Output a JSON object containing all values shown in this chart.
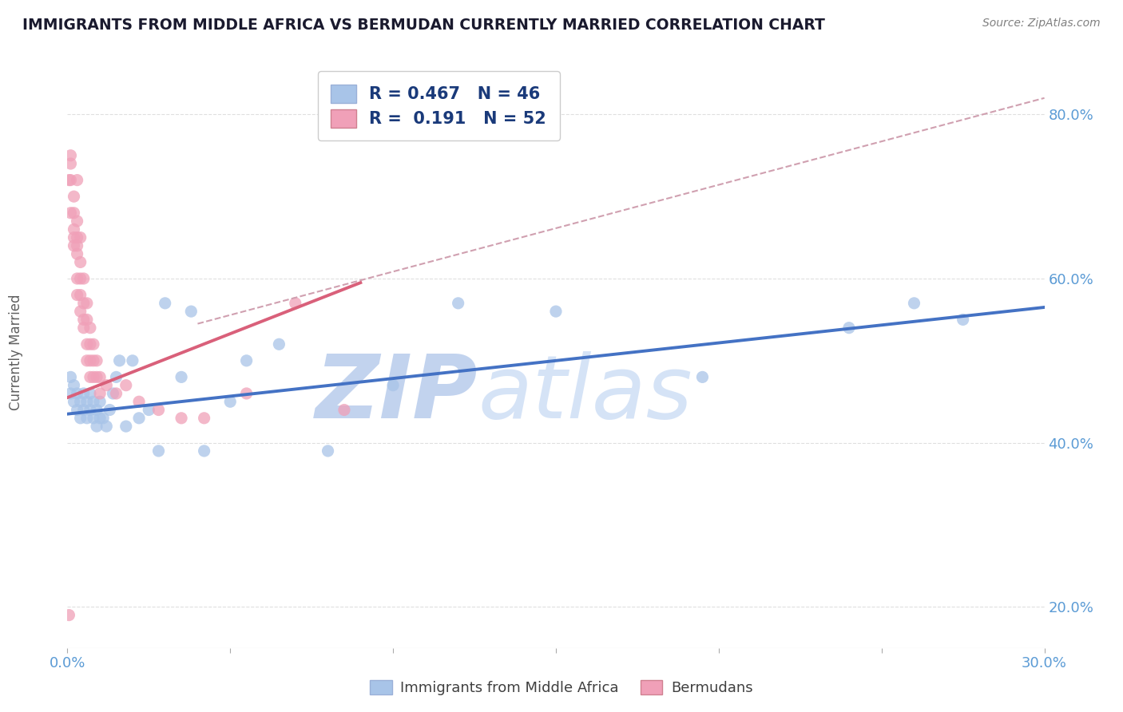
{
  "title": "IMMIGRANTS FROM MIDDLE AFRICA VS BERMUDAN CURRENTLY MARRIED CORRELATION CHART",
  "source_text": "Source: ZipAtlas.com",
  "ylabel": "Currently Married",
  "xlim": [
    0.0,
    0.3
  ],
  "ylim": [
    0.15,
    0.87
  ],
  "xticks": [
    0.0,
    0.05,
    0.1,
    0.15,
    0.2,
    0.25,
    0.3
  ],
  "xticklabels": [
    "0.0%",
    "",
    "",
    "",
    "",
    "",
    "30.0%"
  ],
  "yticks": [
    0.2,
    0.4,
    0.6,
    0.8
  ],
  "yticklabels": [
    "20.0%",
    "40.0%",
    "60.0%",
    "80.0%"
  ],
  "legend_r1": "R = 0.467",
  "legend_n1": "N = 46",
  "legend_r2": "R =  0.191",
  "legend_n2": "N = 52",
  "blue_color": "#a8c4e8",
  "pink_color": "#f0a0b8",
  "blue_line_color": "#4472c4",
  "pink_line_color": "#d9607a",
  "dashed_line_color": "#d0a0b0",
  "watermark": "ZIPatlas",
  "watermark_blue": "#c8d8f0",
  "blue_scatter_x": [
    0.001,
    0.001,
    0.002,
    0.002,
    0.003,
    0.003,
    0.004,
    0.004,
    0.005,
    0.005,
    0.006,
    0.006,
    0.007,
    0.007,
    0.008,
    0.008,
    0.009,
    0.009,
    0.01,
    0.01,
    0.011,
    0.012,
    0.013,
    0.014,
    0.015,
    0.016,
    0.018,
    0.02,
    0.022,
    0.025,
    0.028,
    0.03,
    0.035,
    0.038,
    0.042,
    0.05,
    0.055,
    0.065,
    0.08,
    0.1,
    0.12,
    0.15,
    0.195,
    0.24,
    0.26,
    0.275
  ],
  "blue_scatter_y": [
    0.46,
    0.48,
    0.45,
    0.47,
    0.44,
    0.46,
    0.43,
    0.45,
    0.44,
    0.46,
    0.43,
    0.45,
    0.44,
    0.46,
    0.43,
    0.45,
    0.42,
    0.44,
    0.43,
    0.45,
    0.43,
    0.42,
    0.44,
    0.46,
    0.48,
    0.5,
    0.42,
    0.5,
    0.43,
    0.44,
    0.39,
    0.57,
    0.48,
    0.56,
    0.39,
    0.45,
    0.5,
    0.52,
    0.39,
    0.47,
    0.57,
    0.56,
    0.48,
    0.54,
    0.57,
    0.55
  ],
  "pink_scatter_x": [
    0.0005,
    0.001,
    0.001,
    0.001,
    0.001,
    0.002,
    0.002,
    0.002,
    0.002,
    0.002,
    0.003,
    0.003,
    0.003,
    0.003,
    0.003,
    0.003,
    0.003,
    0.004,
    0.004,
    0.004,
    0.004,
    0.004,
    0.005,
    0.005,
    0.005,
    0.005,
    0.006,
    0.006,
    0.006,
    0.006,
    0.007,
    0.007,
    0.007,
    0.007,
    0.008,
    0.008,
    0.008,
    0.009,
    0.009,
    0.01,
    0.01,
    0.012,
    0.015,
    0.018,
    0.022,
    0.028,
    0.035,
    0.042,
    0.055,
    0.07,
    0.085,
    0.0005
  ],
  "pink_scatter_y": [
    0.72,
    0.75,
    0.72,
    0.68,
    0.74,
    0.7,
    0.66,
    0.68,
    0.65,
    0.64,
    0.72,
    0.67,
    0.65,
    0.63,
    0.6,
    0.58,
    0.64,
    0.65,
    0.62,
    0.6,
    0.58,
    0.56,
    0.6,
    0.57,
    0.55,
    0.54,
    0.57,
    0.55,
    0.52,
    0.5,
    0.54,
    0.52,
    0.5,
    0.48,
    0.52,
    0.5,
    0.48,
    0.5,
    0.48,
    0.48,
    0.46,
    0.47,
    0.46,
    0.47,
    0.45,
    0.44,
    0.43,
    0.43,
    0.46,
    0.57,
    0.44,
    0.19
  ],
  "blue_trend_x": [
    0.0,
    0.3
  ],
  "blue_trend_y": [
    0.435,
    0.565
  ],
  "pink_trend_x": [
    0.0,
    0.09
  ],
  "pink_trend_y": [
    0.455,
    0.595
  ],
  "dashed_trend_x": [
    0.04,
    0.3
  ],
  "dashed_trend_y": [
    0.545,
    0.82
  ]
}
